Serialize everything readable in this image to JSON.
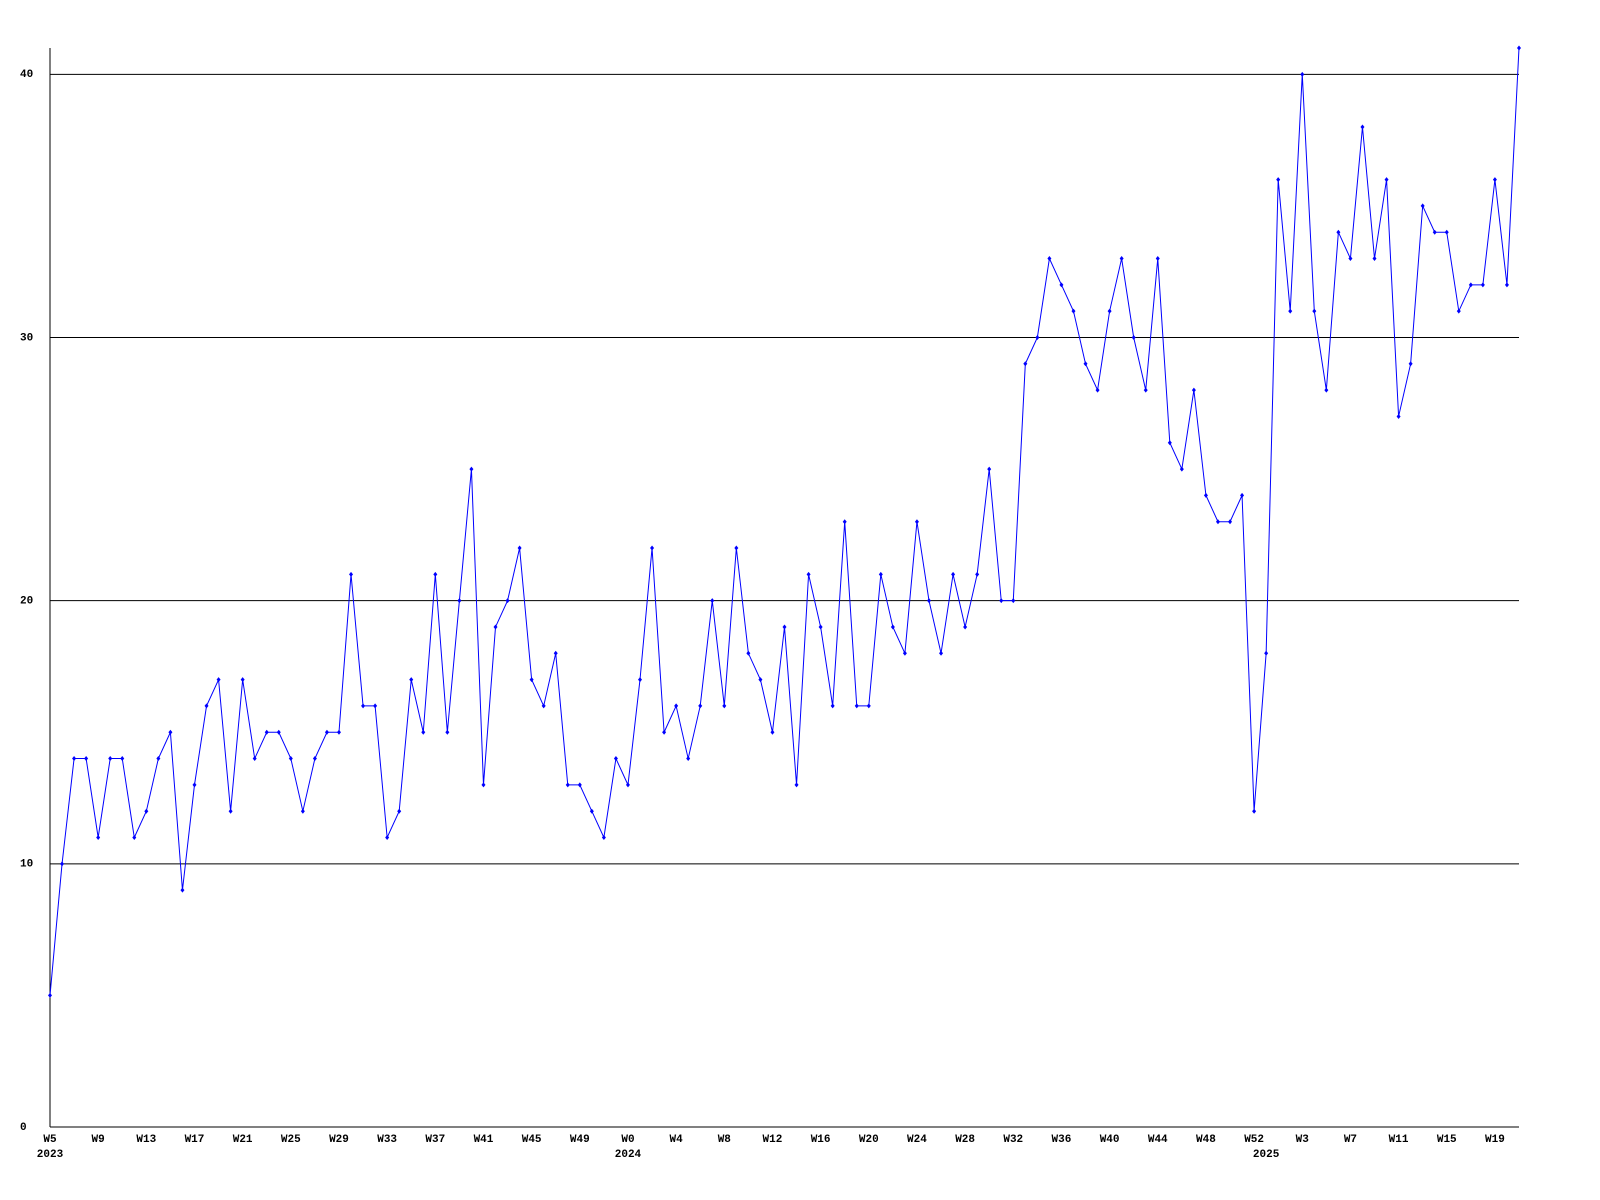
{
  "chart_data": {
    "type": "line",
    "categories": [
      "W5",
      null,
      null,
      null,
      "W9",
      null,
      null,
      null,
      "W13",
      null,
      null,
      null,
      "W17",
      null,
      null,
      null,
      "W21",
      null,
      null,
      null,
      "W25",
      null,
      null,
      null,
      "W29",
      null,
      null,
      null,
      "W33",
      null,
      null,
      null,
      "W37",
      null,
      null,
      null,
      "W41",
      null,
      null,
      null,
      "W45",
      null,
      null,
      null,
      "W49",
      null,
      null,
      null,
      "W0",
      null,
      null,
      null,
      "W4",
      null,
      null,
      null,
      "W8",
      null,
      null,
      null,
      "W12",
      null,
      null,
      null,
      "W16",
      null,
      null,
      null,
      "W20",
      null,
      null,
      null,
      "W24",
      null,
      null,
      null,
      "W28",
      null,
      null,
      null,
      "W32",
      null,
      null,
      null,
      "W36",
      null,
      null,
      null,
      "W40",
      null,
      null,
      null,
      "W44",
      null,
      null,
      null,
      "W48",
      null,
      null,
      null,
      "W52",
      null,
      null,
      null,
      "W3",
      null,
      null,
      null,
      "W7",
      null,
      null,
      null,
      "W11",
      null,
      null,
      null,
      "W15",
      null,
      null,
      null,
      "W19",
      null,
      null
    ],
    "years": [
      "2023",
      null,
      null,
      null,
      null,
      null,
      null,
      null,
      null,
      null,
      null,
      null,
      null,
      null,
      null,
      null,
      null,
      null,
      null,
      null,
      null,
      null,
      null,
      null,
      null,
      null,
      null,
      null,
      null,
      null,
      null,
      null,
      null,
      null,
      null,
      null,
      null,
      null,
      null,
      null,
      null,
      null,
      null,
      null,
      null,
      null,
      null,
      null,
      "2024",
      null,
      null,
      null,
      null,
      null,
      null,
      null,
      null,
      null,
      null,
      null,
      null,
      null,
      null,
      null,
      null,
      null,
      null,
      null,
      null,
      null,
      null,
      null,
      null,
      null,
      null,
      null,
      null,
      null,
      null,
      null,
      null,
      null,
      null,
      null,
      null,
      null,
      null,
      null,
      null,
      null,
      null,
      null,
      null,
      null,
      null,
      null,
      null,
      null,
      null,
      null,
      null,
      "2025",
      null,
      null,
      null,
      null,
      null,
      null,
      null,
      null,
      null,
      null,
      null,
      null,
      null,
      null,
      null,
      null,
      null,
      null,
      null,
      null,
      null
    ],
    "series": [
      {
        "color": "#0000ff",
        "values": [
          5,
          10,
          14,
          14,
          11,
          14,
          14,
          11,
          12,
          14,
          15,
          9,
          13,
          16,
          17,
          12,
          17,
          14,
          15,
          15,
          14,
          12,
          14,
          15,
          15,
          21,
          16,
          16,
          11,
          12,
          17,
          15,
          21,
          15,
          20,
          25,
          13,
          19,
          20,
          22,
          17,
          16,
          18,
          13,
          13,
          12,
          11,
          14,
          13,
          17,
          22,
          15,
          16,
          14,
          16,
          20,
          16,
          22,
          18,
          17,
          15,
          19,
          13,
          21,
          19,
          16,
          23,
          16,
          16,
          21,
          19,
          18,
          23,
          20,
          18,
          21,
          19,
          21,
          25,
          20,
          20,
          29,
          30,
          33,
          32,
          31,
          29,
          28,
          31,
          33,
          30,
          28,
          33,
          26,
          25,
          28,
          24,
          23,
          23,
          24,
          12,
          18,
          36,
          31,
          40,
          31,
          28,
          34,
          33,
          38,
          33,
          36,
          27,
          29,
          35,
          34,
          34,
          31,
          32,
          32,
          36,
          32,
          41
        ]
      }
    ],
    "ylim": [
      0,
      41
    ],
    "yticks": [
      0,
      10,
      20,
      30,
      40
    ],
    "grid": true
  }
}
